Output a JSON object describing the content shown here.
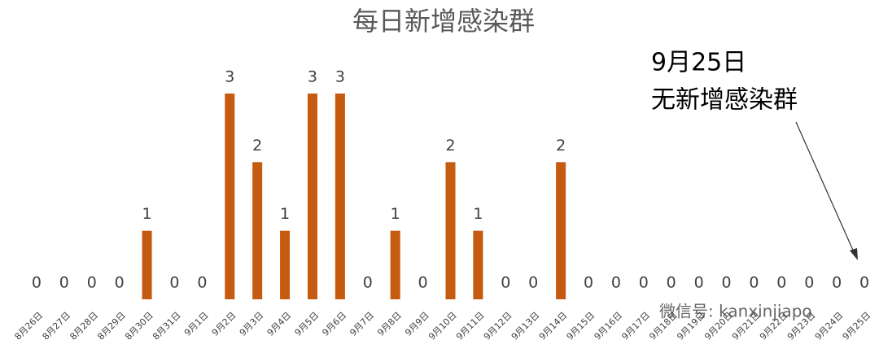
{
  "chart_data": {
    "type": "bar",
    "title": "每日新增感染群",
    "categories": [
      "8月26日",
      "8月27日",
      "8月28日",
      "8月29日",
      "8月30日",
      "8月31日",
      "9月1日",
      "9月2日",
      "9月3日",
      "9月4日",
      "9月5日",
      "9月6日",
      "9月7日",
      "9月8日",
      "9月9日",
      "9月10日",
      "9月11日",
      "9月12日",
      "9月13日",
      "9月14日",
      "9月15日",
      "9月16日",
      "9月17日",
      "9月18日",
      "9月19日",
      "9月20日",
      "9月21日",
      "9月22日",
      "9月23日",
      "9月24日",
      "9月25日"
    ],
    "values": [
      0,
      0,
      0,
      0,
      1,
      0,
      0,
      3,
      2,
      1,
      3,
      3,
      0,
      1,
      0,
      2,
      1,
      0,
      0,
      2,
      0,
      0,
      0,
      0,
      0,
      0,
      0,
      0,
      0,
      0,
      0
    ],
    "color": "#c55a11",
    "ylim": [
      0,
      3
    ],
    "annotation": [
      "9月25日",
      "无新增感染群"
    ],
    "watermark": "微信号: kanxinjiapo"
  }
}
